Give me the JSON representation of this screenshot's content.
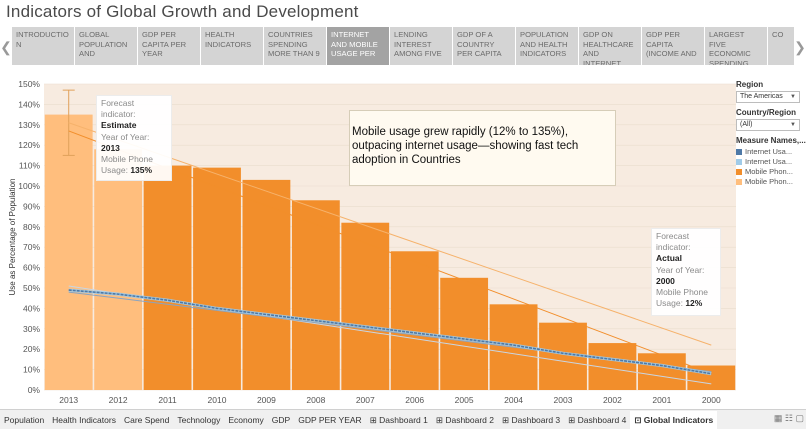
{
  "title": "Indicators of Global Growth and Development",
  "story": {
    "prev_icon": "chevron-left-icon",
    "next_icon": "chevron-right-icon",
    "points": [
      {
        "label": "INTRODUCTIO N"
      },
      {
        "label": "GLOBAL POPULATION AND"
      },
      {
        "label": "GDP PER CAPITA PER YEAR"
      },
      {
        "label": "HEALTH INDICATORS"
      },
      {
        "label": "COUNTRIES SPENDING MORE THAN 9"
      },
      {
        "label": "INTERNET AND MOBILE USAGE PER",
        "active": true
      },
      {
        "label": "LENDING INTEREST AMONG FIVE"
      },
      {
        "label": "GDP OF A COUNTRY PER CAPITA"
      },
      {
        "label": "POPULATION AND HEALTH INDICATORS"
      },
      {
        "label": "GDP ON HEALTHCARE AND INTERNET"
      },
      {
        "label": "GDP PER CAPITA (INCOME AND"
      },
      {
        "label": "LARGEST FIVE ECONOMIC SPENDING"
      },
      {
        "label": "CO"
      }
    ]
  },
  "annotation": "Mobile usage grew rapidly (12% to 135%), outpacing internet usage—showing fast tech adoption in Countries",
  "tooltip_estimate": {
    "line1": "Forecast",
    "line2": "indicator:",
    "status": "Estimate",
    "year_label": "Year of Year:",
    "year": "2013",
    "measure_label": "Mobile Phone",
    "usage_label": "Usage:",
    "usage_value": "135%"
  },
  "tooltip_actual": {
    "line1": "Forecast",
    "line2": "indicator:",
    "status": "Actual",
    "year_label": "Year of Year:",
    "year": "2000",
    "measure_label": "Mobile Phone",
    "usage_label": "Usage:",
    "usage_value": "12%"
  },
  "side_panel": {
    "region_title": "Region",
    "region_value": "The Americas",
    "country_title": "Country/Region",
    "country_value": "(All)",
    "legend_title": "Measure Names,...",
    "legend": [
      {
        "label": "Internet Usa...",
        "color": "#4e79a7"
      },
      {
        "label": "Internet Usa...",
        "color": "#a0cbe8"
      },
      {
        "label": "Mobile Phon...",
        "color": "#f28e2b"
      },
      {
        "label": "Mobile Phon...",
        "color": "#ffbe7d"
      }
    ]
  },
  "sheets": [
    {
      "label": "Population"
    },
    {
      "label": "Health Indicators"
    },
    {
      "label": "Care Spend"
    },
    {
      "label": "Technology"
    },
    {
      "label": "Economy"
    },
    {
      "label": "GDP"
    },
    {
      "label": "GDP PER YEAR"
    },
    {
      "label": "⊞ Dashboard 1"
    },
    {
      "label": "⊞ Dashboard 2"
    },
    {
      "label": "⊞ Dashboard 3"
    },
    {
      "label": "⊞ Dashboard 4"
    },
    {
      "label": "⊡ Global Indicators",
      "active": true
    }
  ],
  "colors": {
    "mobile_actual": "#f28e2b",
    "mobile_forecast": "#ffbe7d",
    "internet_actual": "#4e79a7",
    "internet_forecast": "#a0cbe8",
    "plot_background": "#f7ebe0"
  },
  "chart_data": {
    "type": "bar",
    "ylabel": "Use as Percentage of Population",
    "ylim": [
      0,
      150
    ],
    "yticks": [
      0,
      10,
      20,
      30,
      40,
      50,
      60,
      70,
      80,
      90,
      100,
      110,
      120,
      130,
      140,
      150
    ],
    "ytick_suffix": "%",
    "categories": [
      "2013",
      "2012",
      "2011",
      "2010",
      "2009",
      "2008",
      "2007",
      "2006",
      "2005",
      "2004",
      "2003",
      "2002",
      "2001",
      "2000"
    ],
    "series": [
      {
        "name": "Mobile Phone Usage",
        "values": [
          135,
          118,
          110,
          109,
          103,
          93,
          82,
          68,
          55,
          42,
          33,
          23,
          18,
          12
        ],
        "forecast": [
          true,
          true,
          false,
          false,
          false,
          false,
          false,
          false,
          false,
          false,
          false,
          false,
          false,
          false
        ]
      },
      {
        "name": "Internet Usage",
        "values": [
          49,
          47,
          44,
          40,
          37,
          34,
          31,
          28,
          25,
          22,
          18,
          15,
          12,
          8
        ]
      }
    ],
    "error_bar": {
      "category": "2013",
      "low": 115,
      "high": 147
    },
    "trend_lines": [
      {
        "from": [
          0,
          131
        ],
        "to": [
          13,
          22
        ]
      },
      {
        "from": [
          0,
          127
        ],
        "to": [
          13,
          8
        ]
      },
      {
        "from": [
          0,
          51
        ],
        "to": [
          13,
          3
        ]
      },
      {
        "from": [
          0,
          48
        ],
        "to": [
          13,
          9
        ]
      }
    ]
  }
}
